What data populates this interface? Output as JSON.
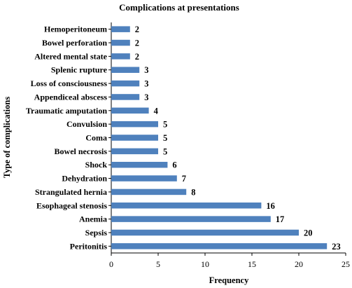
{
  "chart_data": {
    "type": "bar",
    "orientation": "horizontal",
    "title": "Complications at presentations",
    "xlabel": "Frequency",
    "ylabel": "Type of complications",
    "categories": [
      "Hemoperitoneum",
      "Bowel perforation",
      "Altered mental state",
      "Splenic rupture",
      "Loss of consciousness",
      "Appendiceal abscess",
      "Traumatic amputation",
      "Convulsion",
      "Coma",
      "Bowel necrosis",
      "Shock",
      "Dehydration",
      "Strangulated hernia",
      "Esophageal stenosis",
      "Anemia",
      "Sepsis",
      "Peritonitis"
    ],
    "values": [
      2,
      2,
      2,
      3,
      3,
      3,
      4,
      5,
      5,
      5,
      6,
      7,
      8,
      16,
      17,
      20,
      23
    ],
    "xlim": [
      0,
      25
    ],
    "xticks": [
      "0",
      "5",
      "10",
      "15",
      "20",
      "25"
    ],
    "grid": false,
    "data_labels": true,
    "bar_color": "#4f81bd"
  }
}
